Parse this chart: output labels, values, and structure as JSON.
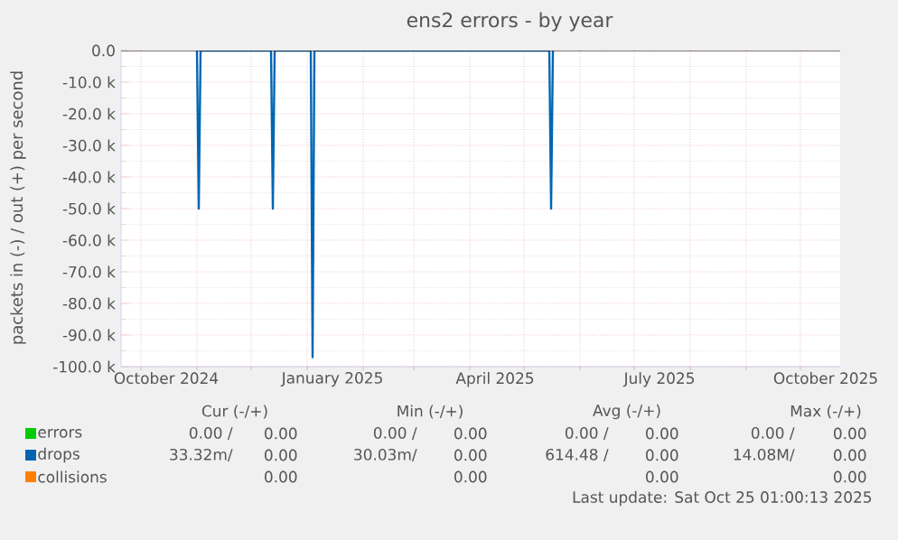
{
  "chart_data": {
    "type": "line",
    "title": "ens2 errors - by year",
    "ylabel": "packets in (-) / out (+) per second",
    "xlim": [
      "2024-09-20",
      "2025-10-23"
    ],
    "ylim": [
      -100000,
      0
    ],
    "xticks": [
      {
        "value": "2024-10-01",
        "label": null
      },
      {
        "value": "2024-11-01",
        "label": null
      },
      {
        "value": "2024-12-01",
        "label": null
      },
      {
        "value": "2025-01-01",
        "label": null
      },
      {
        "value": "2025-02-01",
        "label": null
      },
      {
        "value": "2025-03-01",
        "label": null
      },
      {
        "value": "2025-04-01",
        "label": null
      },
      {
        "value": "2025-05-01",
        "label": null
      },
      {
        "value": "2025-06-01",
        "label": null
      },
      {
        "value": "2025-07-01",
        "label": null
      },
      {
        "value": "2025-08-01",
        "label": null
      },
      {
        "value": "2025-09-01",
        "label": null
      },
      {
        "value": "2025-10-01",
        "label": null
      },
      {
        "value": "2024-10-15",
        "label": "October 2024"
      },
      {
        "value": "2025-01-15",
        "label": "January 2025"
      },
      {
        "value": "2025-04-15",
        "label": "April 2025"
      },
      {
        "value": "2025-07-15",
        "label": "July 2025"
      },
      {
        "value": "2025-10-15",
        "label": "October 2025"
      }
    ],
    "yticks": [
      {
        "value": 0,
        "label": "0.0"
      },
      {
        "value": -10000,
        "label": "-10.0 k"
      },
      {
        "value": -20000,
        "label": "-20.0 k"
      },
      {
        "value": -30000,
        "label": "-30.0 k"
      },
      {
        "value": -40000,
        "label": "-40.0 k"
      },
      {
        "value": -50000,
        "label": "-50.0 k"
      },
      {
        "value": -60000,
        "label": "-60.0 k"
      },
      {
        "value": -70000,
        "label": "-70.0 k"
      },
      {
        "value": -80000,
        "label": "-80.0 k"
      },
      {
        "value": -90000,
        "label": "-90.0 k"
      },
      {
        "value": -100000,
        "label": "-100.0 k"
      }
    ],
    "grid": true,
    "legend": "bottom",
    "series": [
      {
        "name": "errors",
        "color": "#00cc00"
      },
      {
        "name": "drops",
        "color": "#0066b3",
        "x": [
          "2024-11-01",
          "2024-11-02",
          "2024-11-03",
          "2024-12-12",
          "2024-12-13",
          "2024-12-14",
          "2025-01-03",
          "2025-01-04",
          "2025-01-05",
          "2025-05-15",
          "2025-05-16",
          "2025-05-17"
        ],
        "values": [
          0,
          -50000,
          0,
          0,
          -50000,
          0,
          0,
          -97000,
          0,
          0,
          -50000,
          0
        ]
      },
      {
        "name": "collisions",
        "color": "#ff8000"
      }
    ],
    "ref_lines": [
      {
        "axis": "y",
        "value": 0,
        "color": "#000000"
      }
    ],
    "annotations": [
      "Cur (-/+)",
      "Min (-/+)",
      "Avg (-/+)",
      "Max (-/+)",
      "0.00 /",
      "0.00",
      "0.00 /",
      "0.00",
      "0.00 /",
      "0.00",
      "0.00 /",
      "0.00",
      "33.32m/",
      "0.00",
      "30.03m/",
      "0.00",
      "614.48 /",
      "0.00",
      "14.08M/",
      "0.00",
      "0.00",
      "0.00",
      "0.00",
      "0.00",
      "Last update: Sat Oct 25 01:00:13 2025"
    ]
  }
}
